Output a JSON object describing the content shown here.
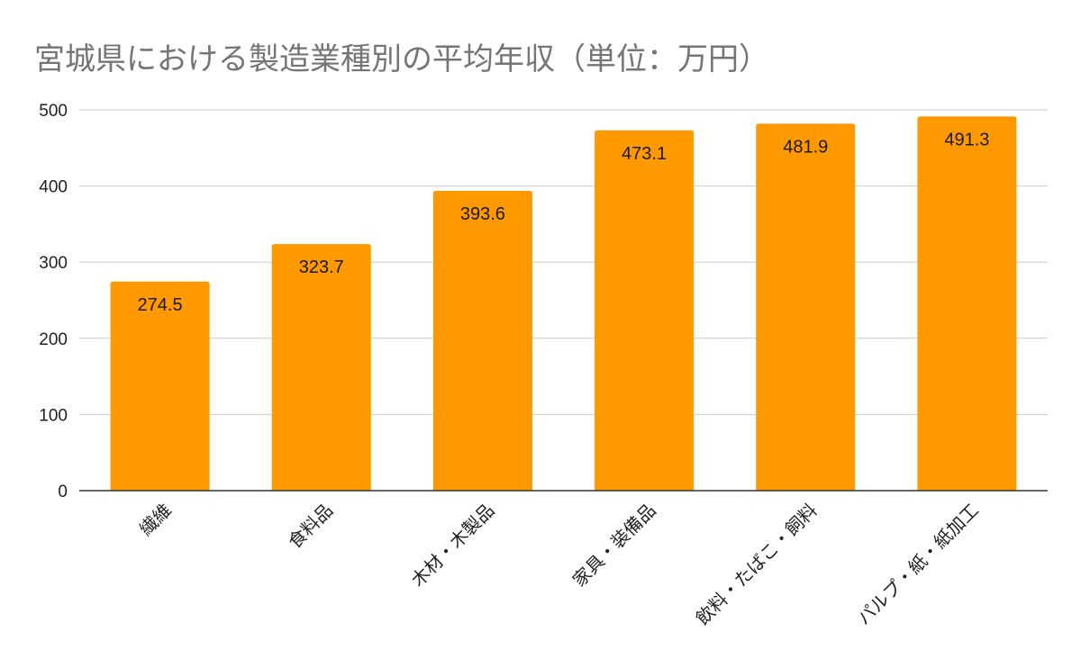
{
  "chart_data": {
    "type": "bar",
    "title": "宮城県における製造業種別の平均年収（単位：万円）",
    "xlabel": "",
    "ylabel": "",
    "categories": [
      "繊維",
      "食料品",
      "木材・木製品",
      "家具・装備品",
      "飲料・たばこ・飼料",
      "パルプ・紙・紙加工"
    ],
    "values": [
      274.5,
      323.7,
      393.6,
      473.1,
      481.9,
      491.3
    ],
    "data_labels": [
      "274.5",
      "323.7",
      "393.6",
      "473.1",
      "481.9",
      "491.3"
    ],
    "ylim": [
      0,
      500
    ],
    "yticks": [
      0,
      100,
      200,
      300,
      400,
      500
    ],
    "grid": true,
    "legend": "none",
    "colors": {
      "bar": "#FF9900",
      "grid": "#cccccc",
      "axis": "#333333"
    }
  }
}
